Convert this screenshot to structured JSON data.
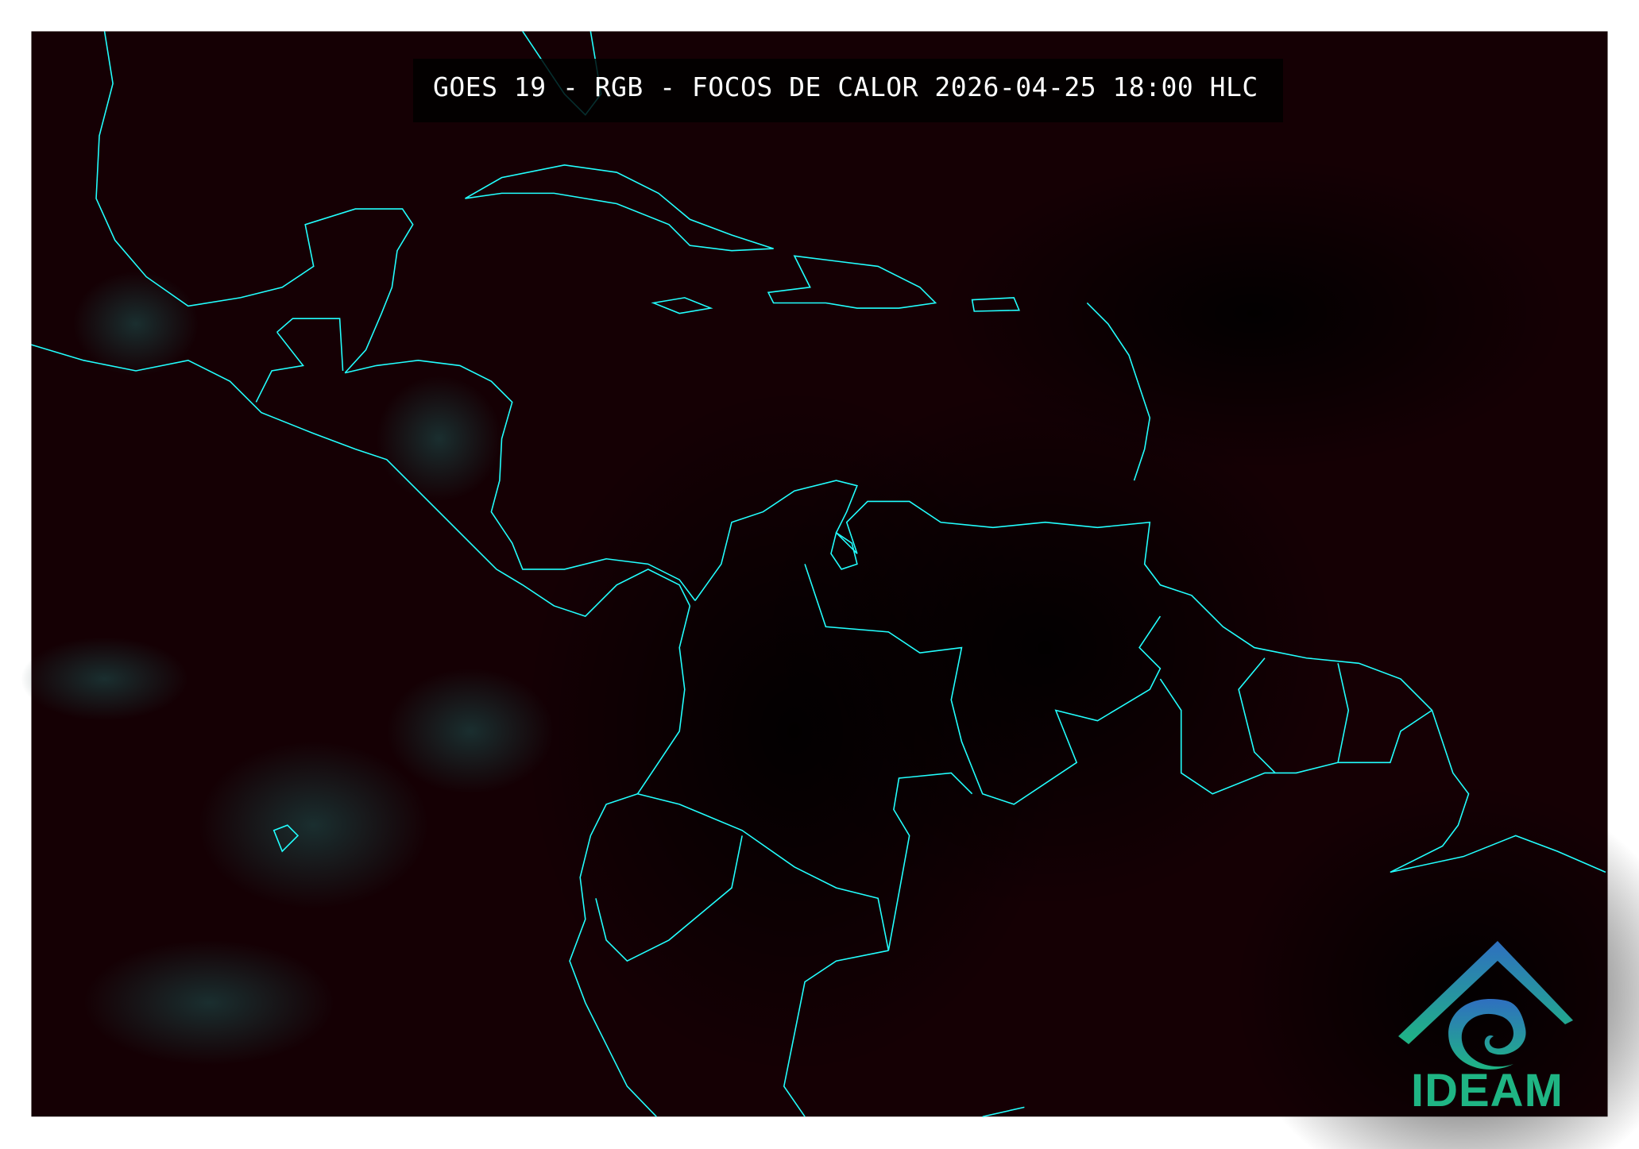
{
  "title": "GOES 19 - RGB - FOCOS DE CALOR 2026-04-25 18:00 HLC",
  "logo": {
    "text": "IDEAM",
    "icon": "ideam-logo-icon",
    "colors": [
      "#2f6fc0",
      "#1fb584"
    ]
  },
  "map": {
    "background_color": "#140003",
    "coastline_color": "#22ffff",
    "region": "Caribbean, Central America and northern South America"
  }
}
